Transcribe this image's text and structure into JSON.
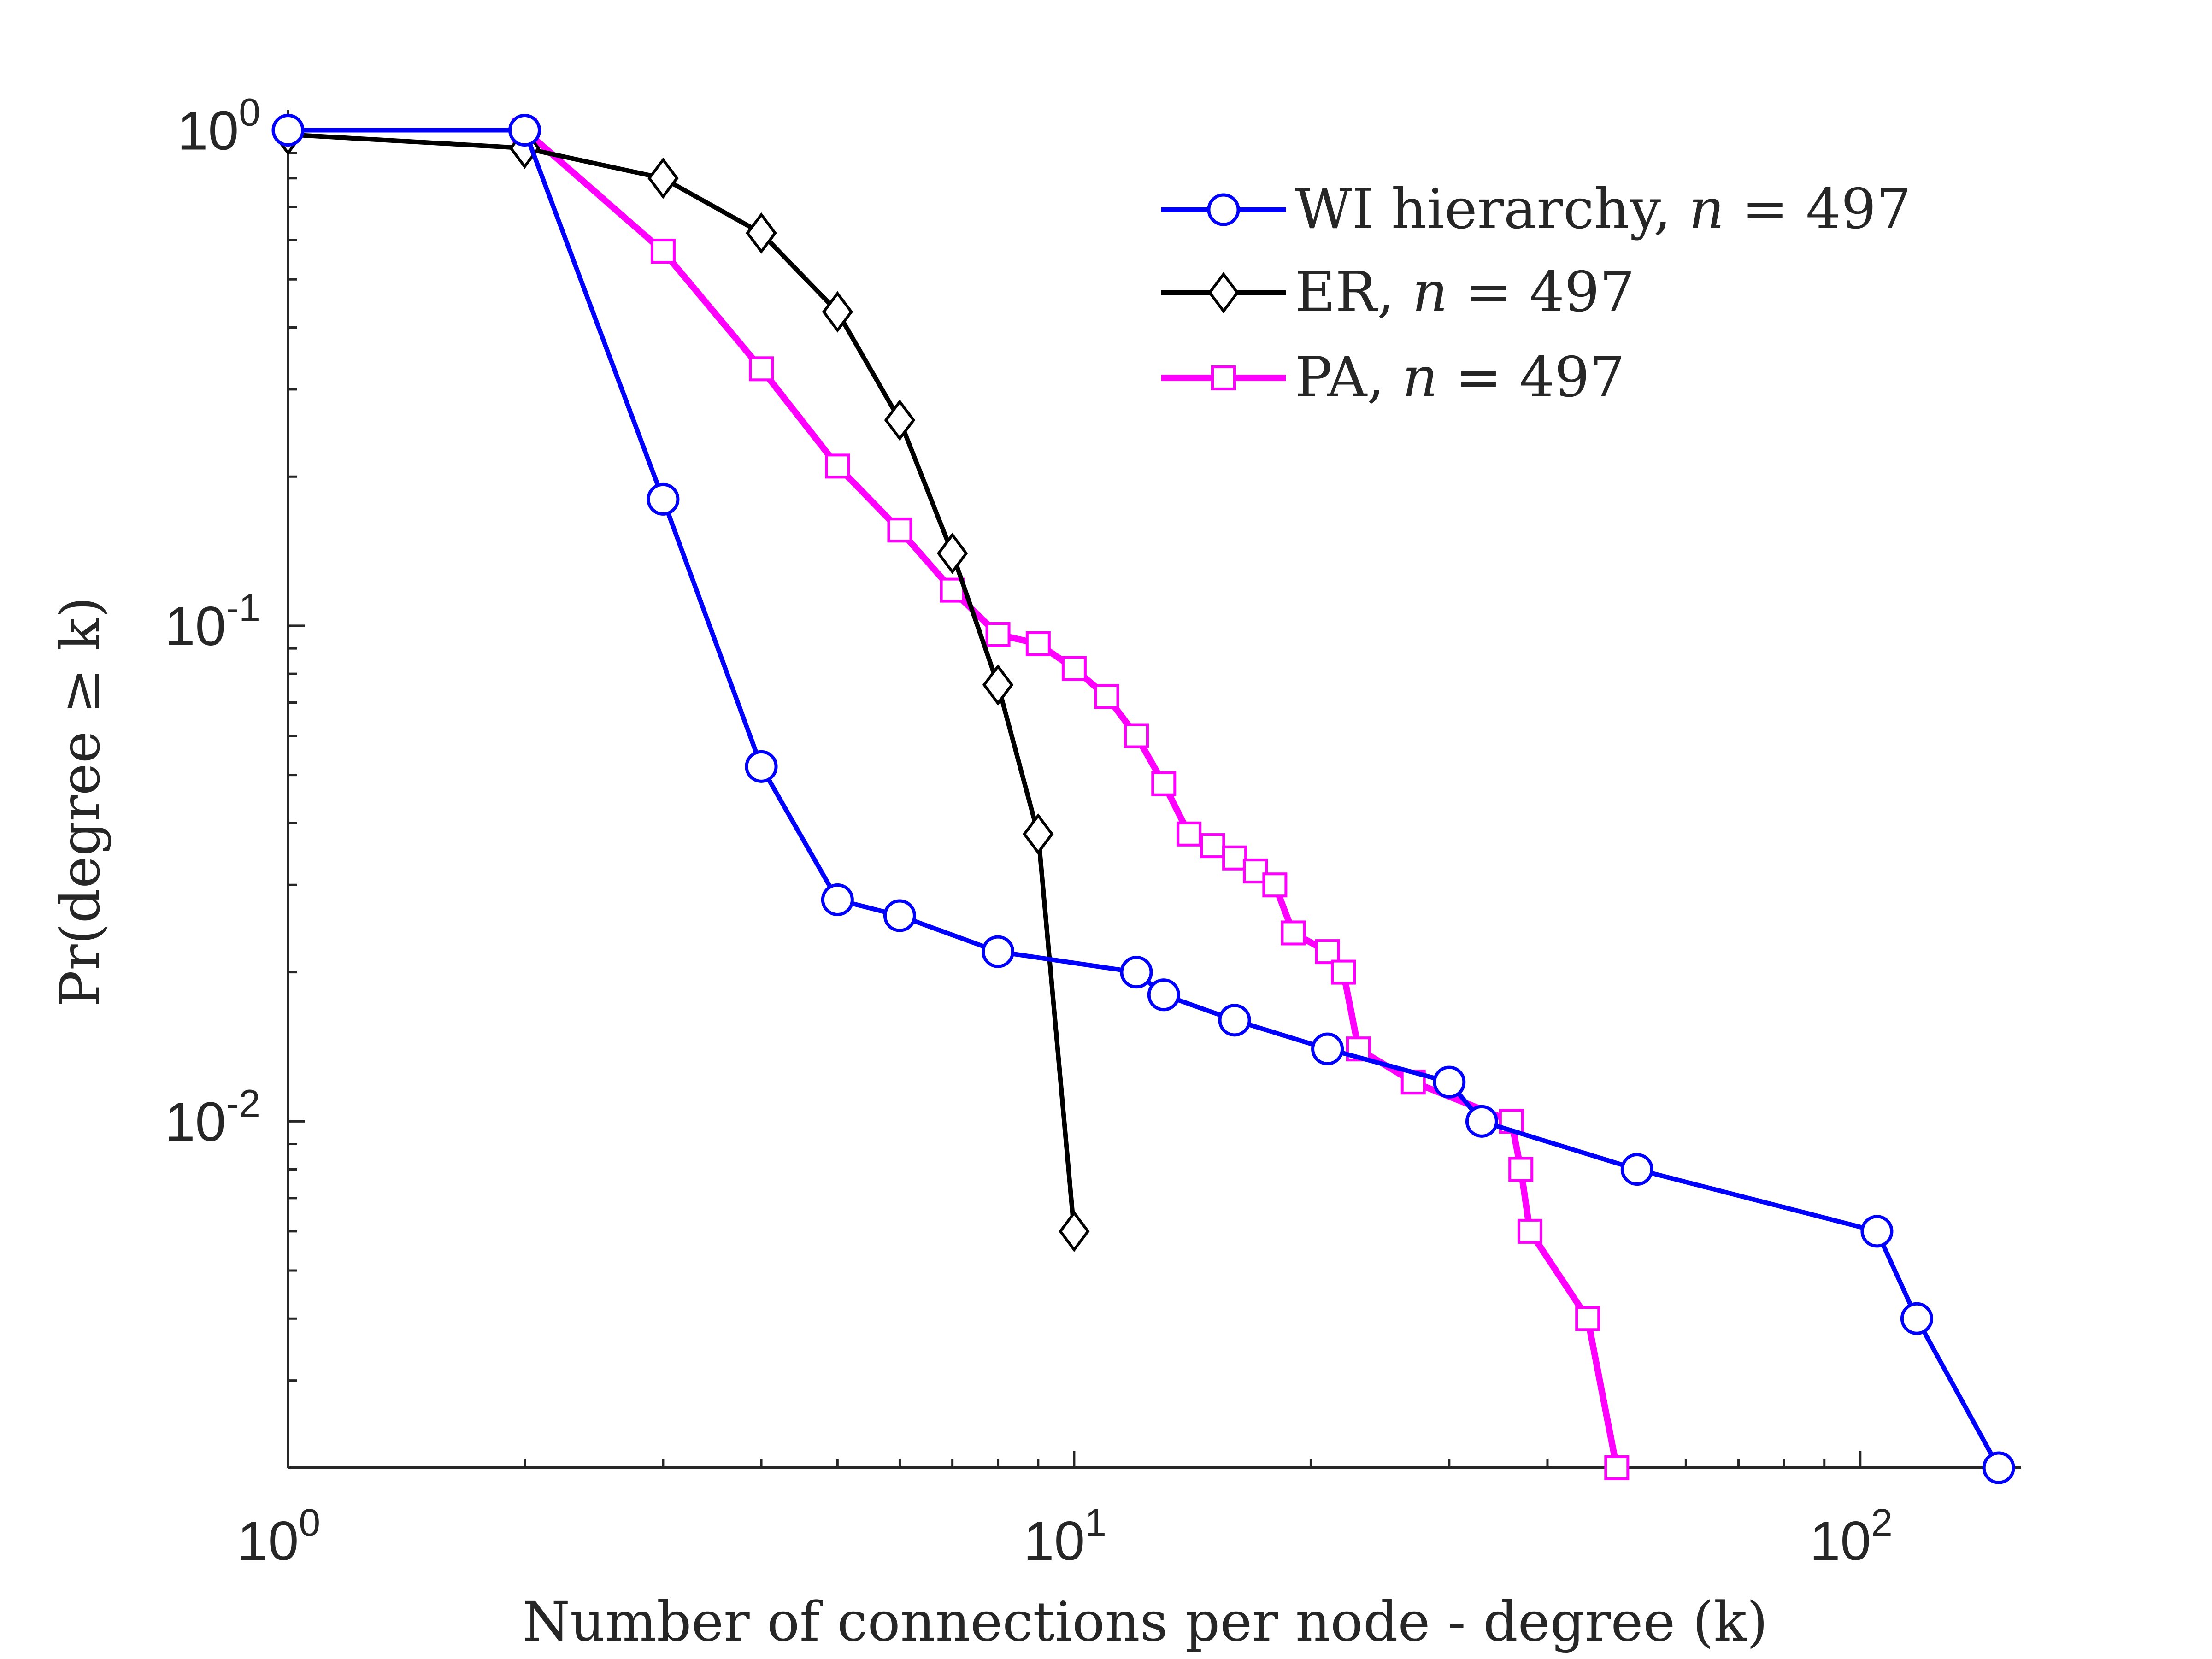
{
  "chart_data": {
    "type": "line",
    "x_scale": "log",
    "y_scale": "log",
    "xlabel": "Number of connections per node - degree (k)",
    "ylabel": "Pr(degree ≥ k)",
    "xlim": [
      1,
      160
    ],
    "ylim": [
      0.002,
      1.1
    ],
    "x_ticks": [
      {
        "value": 1,
        "base": "10",
        "exp": "0"
      },
      {
        "value": 10,
        "base": "10",
        "exp": "1"
      },
      {
        "value": 100,
        "base": "10",
        "exp": "2"
      }
    ],
    "y_ticks": [
      {
        "value": 1,
        "base": "10",
        "exp": "0"
      },
      {
        "value": 0.1,
        "base": "10",
        "exp": "-1"
      },
      {
        "value": 0.01,
        "base": "10",
        "exp": "-2"
      }
    ],
    "legend_position": "top-right",
    "series": [
      {
        "name": "WI hierarchy, n = 497",
        "legend_prefix": "WI hierarchy, ",
        "color": "#0000ff",
        "marker": "circle",
        "x": [
          1,
          2,
          3,
          4,
          5,
          6,
          8,
          12,
          13,
          16,
          21,
          30,
          33,
          52,
          105,
          118,
          150
        ],
        "y": [
          1.0,
          1.0,
          0.18,
          0.052,
          0.028,
          0.026,
          0.022,
          0.02,
          0.018,
          0.016,
          0.014,
          0.012,
          0.01,
          0.008,
          0.006,
          0.004,
          0.002
        ]
      },
      {
        "name": "ER, n = 497",
        "legend_prefix": "ER, ",
        "color": "#000000",
        "marker": "diamond",
        "x": [
          1,
          2,
          3,
          4,
          5,
          6,
          7,
          8,
          9,
          10
        ],
        "y": [
          0.98,
          0.92,
          0.8,
          0.62,
          0.43,
          0.26,
          0.14,
          0.076,
          0.038,
          0.006
        ]
      },
      {
        "name": "PA, n = 497",
        "legend_prefix": "PA, ",
        "color": "#ff00ff",
        "marker": "square",
        "x": [
          2,
          3,
          4,
          5,
          6,
          7,
          8,
          9,
          10,
          11,
          12,
          13,
          14,
          15,
          16,
          17,
          18,
          19,
          21,
          22,
          23,
          27,
          36,
          37,
          38,
          45,
          49
        ],
        "y": [
          1.0,
          0.57,
          0.33,
          0.21,
          0.156,
          0.118,
          0.096,
          0.092,
          0.082,
          0.072,
          0.06,
          0.048,
          0.038,
          0.036,
          0.034,
          0.032,
          0.03,
          0.024,
          0.022,
          0.02,
          0.014,
          0.012,
          0.01,
          0.008,
          0.006,
          0.004,
          0.002
        ]
      }
    ],
    "legend_var": "n",
    "legend_eq": "= 497"
  }
}
